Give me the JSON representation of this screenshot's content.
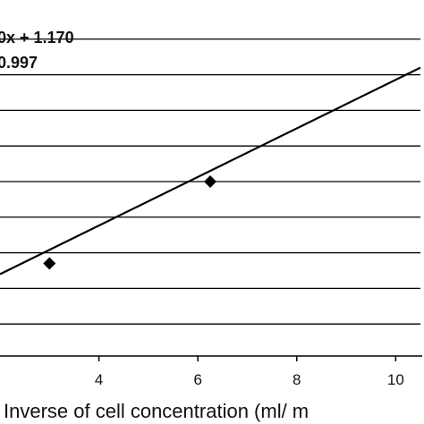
{
  "chart_data": {
    "type": "scatter",
    "xlabel": "Inverse of cell concentration (ml/ m",
    "ylabel": "",
    "title": "",
    "xlim": [
      2.0,
      10.5
    ],
    "ylim": [
      0.0,
      10.0
    ],
    "x_ticks": [
      4,
      6,
      8,
      10
    ],
    "x_tick_labels": [
      "4",
      "6",
      "8",
      "10"
    ],
    "grid": true,
    "series": [
      {
        "points": [
          {
            "x": 3.0,
            "y": 2.6
          },
          {
            "x": 6.25,
            "y": 4.9
          }
        ]
      }
    ],
    "fit_line": {
      "x": [
        2.0,
        10.5
      ],
      "y": [
        2.3,
        8.1
      ]
    },
    "gridline_y": [
      0.9,
      1.9,
      2.9,
      3.9,
      4.9,
      5.9,
      6.9,
      7.9,
      8.9
    ],
    "annotations": [
      "0x + 1.170",
      "0.997"
    ],
    "colors": {
      "marker": "#000000",
      "line": "#000000",
      "grid": "#000000"
    }
  }
}
